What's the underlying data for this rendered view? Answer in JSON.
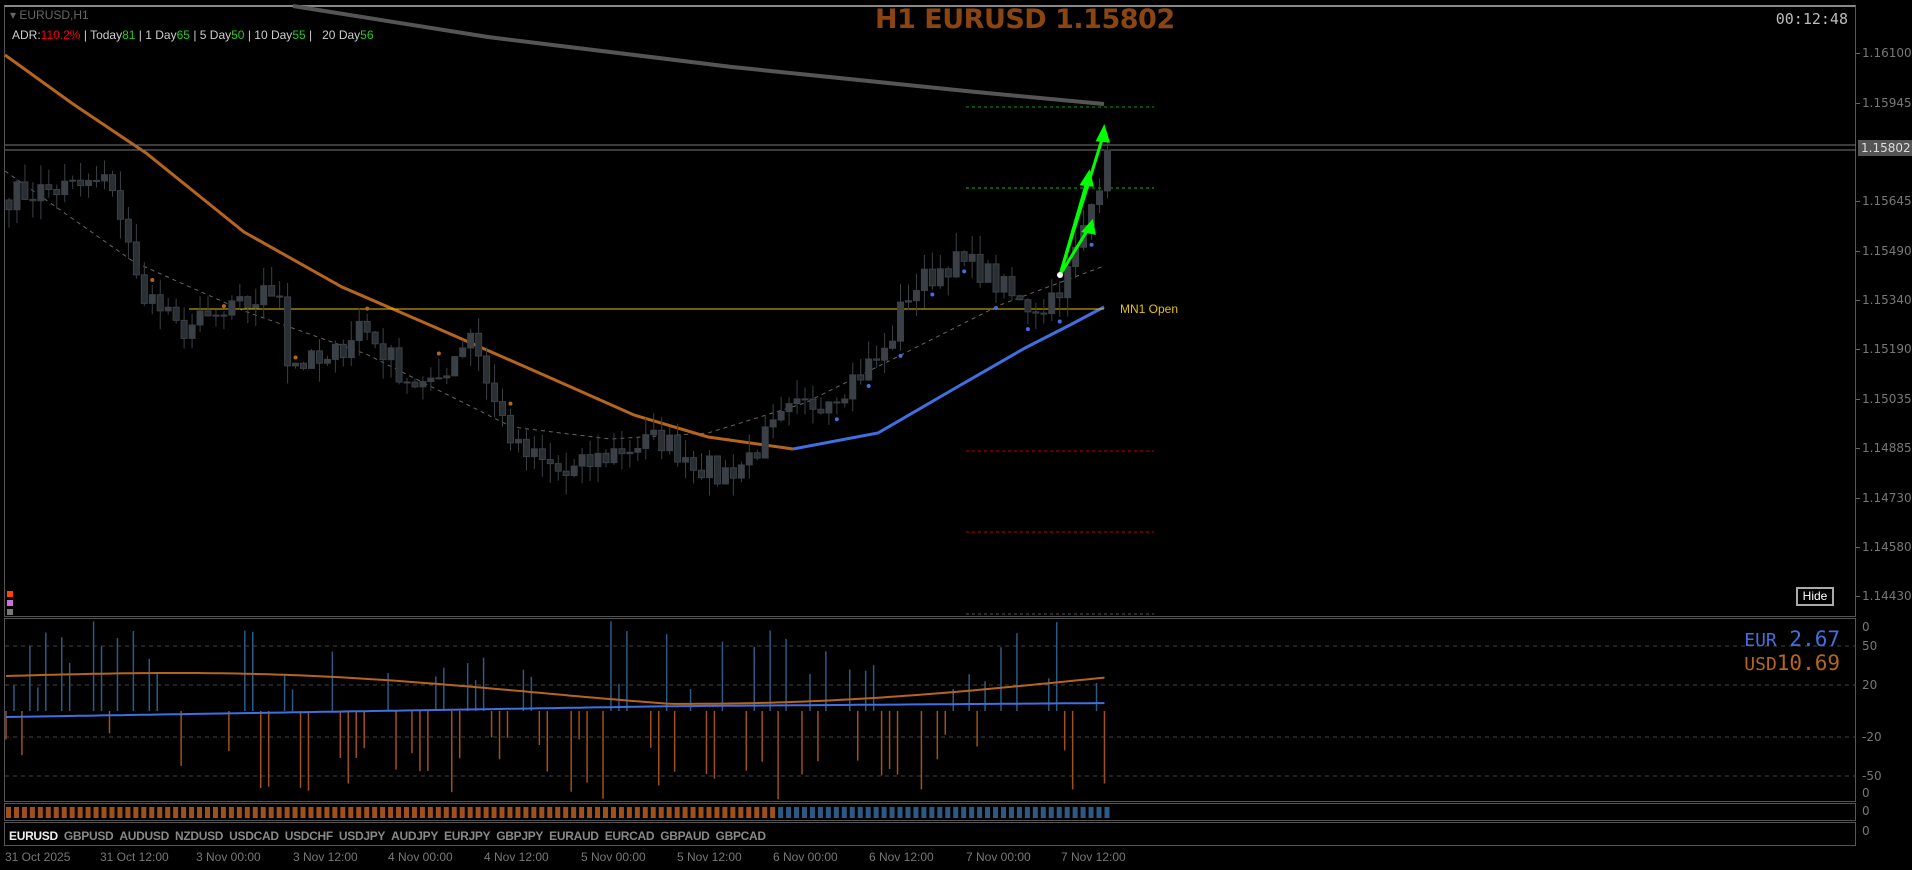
{
  "chart": {
    "symbol_label": "EURUSD,H1",
    "title": "H1 EURUSD 1.15802",
    "clock": "00:12:48",
    "current_price": "1.15802",
    "mn1_label": "MN1 Open",
    "hide_button": "Hide",
    "colors": {
      "title": "#8B4513",
      "ma_orange": "#b5651d",
      "ma_blue": "#3f6fe0",
      "ma_gray": "#555555",
      "bull": "#2d3338",
      "arrow": "#00ff00"
    }
  },
  "adr": {
    "label": "ADR:",
    "adr_value": "110.2%",
    "today_label": "| Today",
    "today_value": "81",
    "d1_label": "| 1 Day",
    "d1_value": "65",
    "d5_label": "| 5 Day",
    "d5_value": "50",
    "d10_label": "| 10 Day",
    "d10_value": "55",
    "d20_label": "|   20 Day",
    "d20_value": "56"
  },
  "price_axis": [
    "1.16100",
    "1.15945",
    "1.15645",
    "1.15490",
    "1.15340",
    "1.15190",
    "1.15035",
    "1.14885",
    "1.14730",
    "1.14580",
    "1.14430"
  ],
  "candle_anchors": [
    [
      0,
      1.15663
    ],
    [
      13,
      1.157
    ],
    [
      16,
      1.154
    ],
    [
      21,
      1.1525
    ],
    [
      27,
      1.15287
    ],
    [
      34,
      1.15381
    ],
    [
      35,
      1.15156
    ],
    [
      40,
      1.15137
    ],
    [
      44,
      1.15269
    ],
    [
      50,
      1.151
    ],
    [
      53,
      1.15062
    ],
    [
      58,
      1.1525
    ],
    [
      61,
      1.15025
    ],
    [
      64,
      1.14875
    ],
    [
      70,
      1.148
    ],
    [
      76,
      1.14875
    ],
    [
      82,
      1.14912
    ],
    [
      89,
      1.148
    ],
    [
      92,
      1.14837
    ],
    [
      98,
      1.14987
    ],
    [
      104,
      1.15062
    ],
    [
      110,
      1.15175
    ],
    [
      113,
      1.15362
    ],
    [
      118,
      1.15456
    ],
    [
      122,
      1.15438
    ],
    [
      127,
      1.15325
    ],
    [
      130,
      1.15325
    ],
    [
      133,
      1.15419
    ],
    [
      135,
      1.1555
    ],
    [
      138,
      1.15802
    ]
  ],
  "indicator": {
    "axis": [
      "0",
      "50",
      "20",
      "-20",
      "-50",
      "0"
    ],
    "eur_label": "EUR",
    "eur_value": "2.67",
    "usd_label": "USD",
    "usd_value": "10.69"
  },
  "bars_axis": "0",
  "symbols_axis": "0",
  "symbols": [
    "EURUSD",
    "GBPUSD",
    "AUDUSD",
    "NZDUSD",
    "USDCAD",
    "USDCHF",
    "USDJPY",
    "AUDJPY",
    "EURJPY",
    "GBPJPY",
    "EURAUD",
    "EURCAD",
    "GBPAUD",
    "GBPCAD"
  ],
  "time_axis": [
    "31 Oct 2025",
    "31 Oct 12:00",
    "3 Nov 00:00",
    "3 Nov 12:00",
    "4 Nov 00:00",
    "4 Nov 12:00",
    "5 Nov 00:00",
    "5 Nov 12:00",
    "6 Nov 00:00",
    "6 Nov 12:00",
    "7 Nov 00:00",
    "7 Nov 12:00"
  ]
}
